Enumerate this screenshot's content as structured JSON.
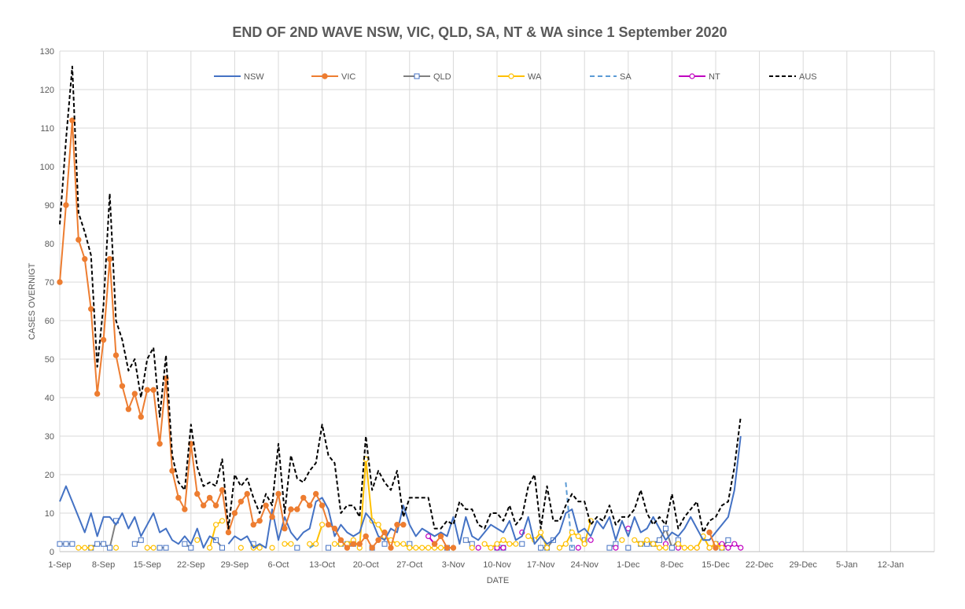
{
  "chart_data": {
    "type": "line",
    "title": "END OF 2ND WAVE NSW, VIC, QLD, SA, NT & WA since 1 September 2020",
    "xlabel": "DATE",
    "ylabel": "CASES OVERNIGT",
    "ylim": [
      0,
      130
    ],
    "yticks": [
      0,
      10,
      20,
      30,
      40,
      50,
      60,
      70,
      80,
      90,
      100,
      110,
      120,
      130
    ],
    "xlim": [
      "2020-09-01",
      "2021-01-19"
    ],
    "xtick_labels": [
      "1-Sep",
      "8-Sep",
      "15-Sep",
      "22-Sep",
      "29-Sep",
      "6-Oct",
      "13-Oct",
      "20-Oct",
      "27-Oct",
      "3-Nov",
      "10-Nov",
      "17-Nov",
      "24-Nov",
      "1-Dec",
      "8-Dec",
      "15-Dec",
      "22-Dec",
      "29-Dec",
      "5-Jan",
      "12-Jan"
    ],
    "grid": true,
    "legend_position": "top",
    "start_date": "2020-09-01",
    "series": [
      {
        "name": "NSW",
        "color": "#4472c4",
        "dash": "",
        "marker": "none",
        "values": [
          13,
          17,
          13,
          9,
          5,
          10,
          4,
          9,
          9,
          7,
          10,
          6,
          9,
          4,
          7,
          10,
          5,
          6,
          3,
          2,
          4,
          2,
          6,
          1,
          4,
          3,
          null,
          2,
          4,
          3,
          4,
          1,
          2,
          1,
          11,
          3,
          9,
          5,
          3,
          5,
          6,
          13,
          14,
          11,
          4,
          7,
          5,
          4,
          5,
          10,
          8,
          4,
          3,
          6,
          5,
          12,
          7,
          4,
          6,
          5,
          4,
          5,
          4,
          9,
          2,
          9,
          4,
          3,
          5,
          7,
          6,
          5,
          8,
          3,
          4,
          9,
          2,
          4,
          2,
          3,
          5,
          10,
          11,
          5,
          6,
          4,
          8,
          6,
          9,
          3,
          8,
          4,
          9,
          5,
          6,
          9,
          6,
          3,
          5,
          4,
          6,
          9,
          6,
          3,
          3,
          5,
          7,
          9,
          16,
          30
        ]
      },
      {
        "name": "VIC",
        "color": "#ed7d31",
        "dash": "",
        "marker": "circle-filled",
        "values": [
          70,
          90,
          112,
          81,
          76,
          63,
          41,
          55,
          76,
          51,
          43,
          37,
          41,
          35,
          42,
          42,
          28,
          45,
          21,
          14,
          11,
          28,
          15,
          12,
          14,
          12,
          16,
          5,
          10,
          13,
          15,
          7,
          8,
          12,
          9,
          15,
          6,
          11,
          11,
          14,
          12,
          15,
          12,
          7,
          6,
          3,
          1,
          2,
          2,
          4,
          1,
          3,
          5,
          1,
          7,
          7,
          null,
          null,
          null,
          null,
          2,
          4,
          1,
          1,
          null,
          null,
          null,
          null,
          null,
          null,
          null,
          null,
          null,
          null,
          null,
          null,
          null,
          null,
          null,
          null,
          null,
          null,
          null,
          null,
          null,
          null,
          null,
          null,
          null,
          null,
          null,
          null,
          null,
          null,
          null,
          null,
          null,
          null,
          null,
          null,
          null,
          null,
          null,
          null,
          5,
          1,
          null,
          null,
          null,
          null,
          null
        ]
      },
      {
        "name": "QLD",
        "color": "#7f7f7f",
        "dash": "",
        "marker": "square-open",
        "values": [
          2,
          2,
          2,
          null,
          null,
          1,
          2,
          2,
          1,
          8,
          null,
          null,
          2,
          3,
          null,
          null,
          1,
          1,
          null,
          null,
          2,
          1,
          null,
          null,
          null,
          3,
          1,
          null,
          null,
          null,
          null,
          2,
          null,
          null,
          null,
          null,
          null,
          null,
          1,
          null,
          null,
          null,
          null,
          1,
          null,
          2,
          2,
          2,
          null,
          null,
          1,
          null,
          2,
          null,
          null,
          null,
          2,
          null,
          null,
          null,
          null,
          null,
          1,
          null,
          null,
          3,
          2,
          null,
          null,
          null,
          1,
          1,
          null,
          null,
          2,
          null,
          null,
          1,
          1,
          3,
          null,
          null,
          1,
          null,
          3,
          null,
          null,
          null,
          1,
          2,
          null,
          1,
          null,
          2,
          2,
          2,
          3,
          6,
          1,
          3,
          null,
          null,
          null,
          null,
          null,
          2,
          1,
          3,
          null,
          null
        ]
      },
      {
        "name": "WA",
        "color": "#ffc000",
        "dash": "",
        "marker": "circle-open",
        "values": [
          null,
          null,
          null,
          1,
          1,
          1,
          null,
          null,
          null,
          1,
          null,
          null,
          null,
          null,
          1,
          1,
          null,
          null,
          null,
          null,
          null,
          null,
          3,
          null,
          1,
          7,
          8,
          null,
          null,
          1,
          null,
          1,
          1,
          null,
          1,
          null,
          2,
          2,
          null,
          null,
          2,
          2,
          7,
          null,
          2,
          2,
          2,
          3,
          1,
          24,
          8,
          7,
          4,
          3,
          2,
          2,
          1,
          1,
          1,
          1,
          1,
          1,
          1,
          1,
          null,
          null,
          1,
          null,
          2,
          1,
          2,
          3,
          2,
          2,
          null,
          4,
          3,
          5,
          1,
          null,
          1,
          2,
          5,
          4,
          2,
          8,
          null,
          null,
          null,
          null,
          3,
          null,
          3,
          2,
          3,
          2,
          1,
          1,
          null,
          2,
          1,
          1,
          1,
          4,
          1,
          2,
          1,
          null,
          null,
          null,
          null
        ]
      },
      {
        "name": "SA",
        "color": "#5b9bd5",
        "dash": "6,4",
        "marker": "none",
        "values": [
          null,
          null,
          null,
          null,
          null,
          null,
          null,
          null,
          null,
          null,
          null,
          null,
          null,
          null,
          null,
          null,
          null,
          null,
          null,
          null,
          null,
          null,
          null,
          null,
          null,
          null,
          null,
          null,
          null,
          null,
          null,
          null,
          null,
          null,
          null,
          null,
          null,
          null,
          null,
          null,
          1,
          2,
          null,
          null,
          null,
          null,
          null,
          null,
          null,
          null,
          null,
          null,
          null,
          null,
          null,
          null,
          null,
          null,
          null,
          null,
          null,
          null,
          null,
          null,
          null,
          null,
          null,
          null,
          null,
          null,
          1,
          3,
          null,
          null,
          null,
          null,
          null,
          null,
          null,
          null,
          null,
          18,
          1,
          null,
          null,
          null,
          null,
          null,
          null,
          null,
          null,
          null,
          null,
          null,
          null,
          null,
          null,
          null,
          null,
          null,
          null,
          null,
          null,
          null,
          null,
          null,
          null,
          null,
          null,
          null,
          null
        ]
      },
      {
        "name": "NT",
        "color": "#c000c0",
        "dash": "",
        "marker": "circle-open",
        "values": [
          null,
          null,
          null,
          null,
          null,
          null,
          null,
          null,
          null,
          null,
          null,
          null,
          null,
          null,
          null,
          null,
          null,
          null,
          null,
          null,
          null,
          null,
          null,
          null,
          null,
          null,
          null,
          null,
          null,
          null,
          null,
          null,
          null,
          null,
          null,
          null,
          null,
          null,
          null,
          null,
          null,
          null,
          null,
          null,
          null,
          null,
          null,
          null,
          null,
          null,
          null,
          null,
          null,
          null,
          null,
          null,
          null,
          null,
          null,
          4,
          2,
          null,
          null,
          null,
          null,
          null,
          null,
          1,
          null,
          null,
          1,
          1,
          null,
          null,
          5,
          null,
          null,
          null,
          null,
          null,
          null,
          null,
          null,
          1,
          null,
          3,
          null,
          null,
          null,
          1,
          null,
          6,
          null,
          null,
          null,
          null,
          null,
          2,
          null,
          1,
          null,
          null,
          1,
          null,
          1,
          2,
          2,
          1,
          2,
          1
        ]
      },
      {
        "name": "AUS",
        "color": "#000000",
        "dash": "5,3",
        "marker": "none",
        "values": [
          85,
          107,
          126,
          88,
          83,
          77,
          48,
          64,
          93,
          60,
          55,
          47,
          50,
          40,
          50,
          53,
          35,
          51,
          25,
          18,
          16,
          33,
          22,
          17,
          18,
          17,
          24,
          6,
          20,
          17,
          19,
          14,
          10,
          15,
          12,
          28,
          10,
          25,
          19,
          18,
          21,
          23,
          33,
          25,
          23,
          10,
          12,
          12,
          9,
          30,
          16,
          21,
          18,
          16,
          21,
          9,
          14,
          14,
          14,
          14,
          6,
          6,
          8,
          7,
          13,
          11,
          11,
          7,
          6,
          10,
          10,
          8,
          12,
          7,
          9,
          17,
          20,
          6,
          17,
          8,
          8,
          12,
          15,
          13,
          13,
          7,
          9,
          8,
          12,
          7,
          9,
          9,
          11,
          16,
          10,
          7,
          9,
          7,
          15,
          6,
          9,
          11,
          13,
          5,
          8,
          9,
          12,
          13,
          22,
          35
        ]
      }
    ]
  }
}
